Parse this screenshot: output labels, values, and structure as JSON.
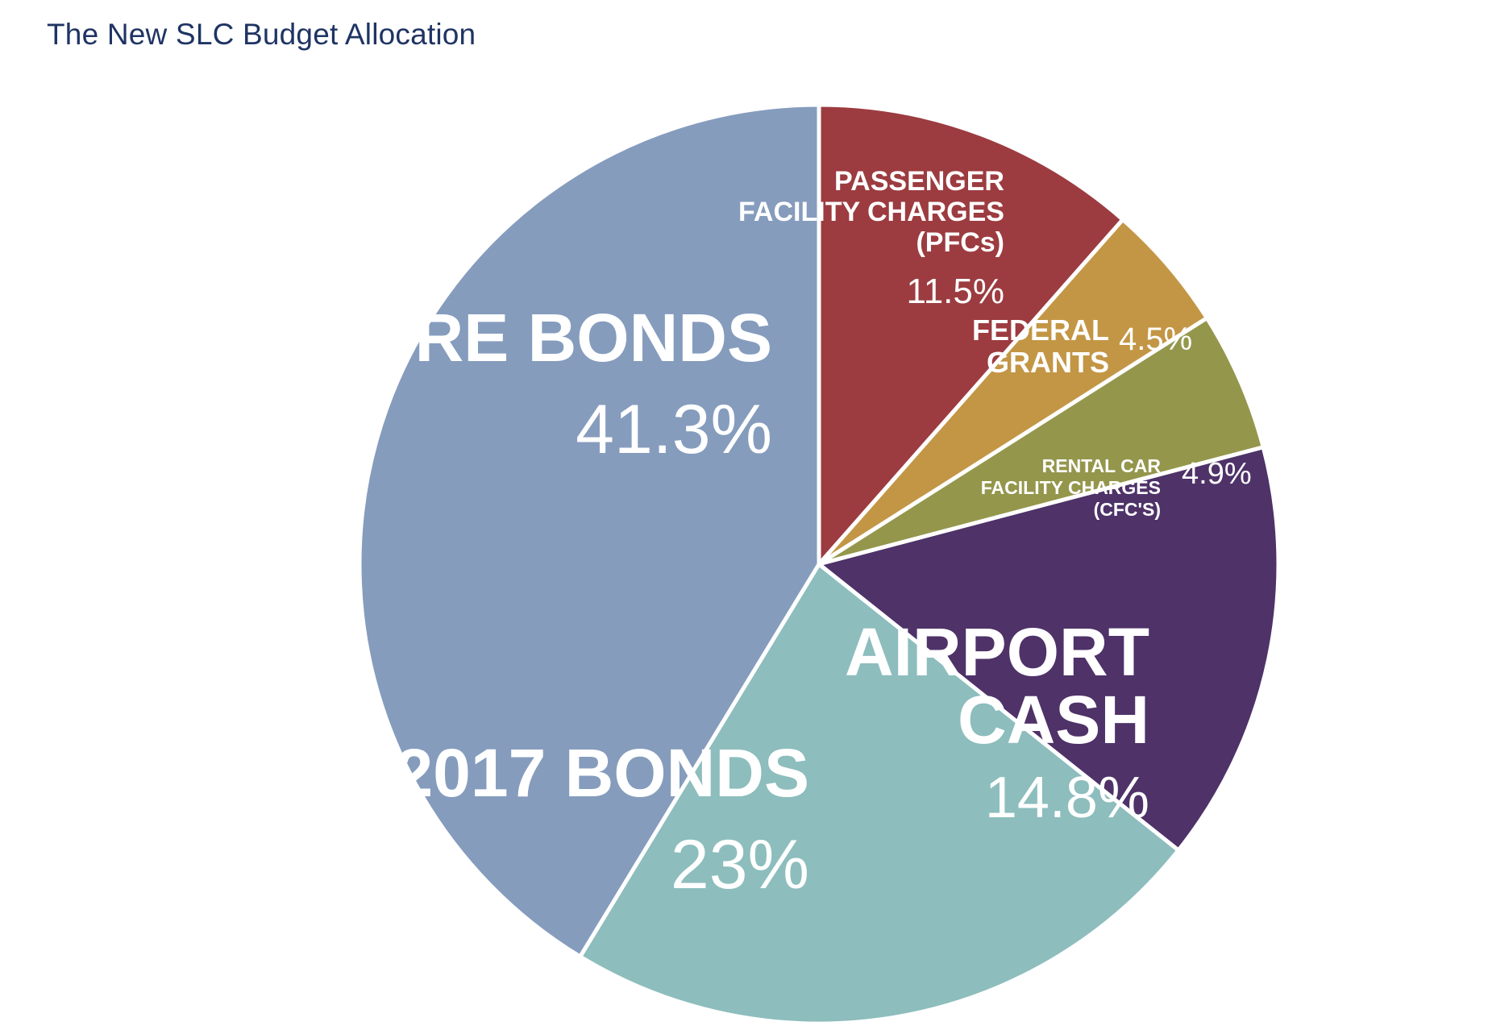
{
  "title": "The New SLC Budget Allocation",
  "chart_data": {
    "type": "pie",
    "title": "The New SLC Budget Allocation",
    "slices": [
      {
        "name": "PASSENGER FACILITY CHARGES (PFCs)",
        "lines": [
          "PASSENGER",
          "FACILITY CHARGES",
          "(PFCs)"
        ],
        "value": 11.5,
        "label": "11.5%",
        "color": "#9c3c40"
      },
      {
        "name": "FEDERAL GRANTS",
        "lines": [
          "FEDERAL",
          "GRANTS"
        ],
        "value": 4.5,
        "label": "4.5%",
        "color": "#c39645"
      },
      {
        "name": "RENTAL CAR FACILITY CHARGES (CFC'S)",
        "lines": [
          "RENTAL CAR",
          "FACILITY CHARGES",
          "(CFC'S)"
        ],
        "value": 4.9,
        "label": "4.9%",
        "color": "#94964c"
      },
      {
        "name": "AIRPORT CASH",
        "lines": [
          "AIRPORT",
          "CASH"
        ],
        "value": 14.8,
        "label": "14.8%",
        "color": "#4e3268"
      },
      {
        "name": "2017 BONDS",
        "lines": [
          "2017 BONDS"
        ],
        "value": 23,
        "label": "23%",
        "color": "#8dbdbd"
      },
      {
        "name": "FUTURE BONDS",
        "lines": [
          "FUTURE BONDS"
        ],
        "value": 41.3,
        "label": "41.3%",
        "color": "#859cbd"
      }
    ]
  }
}
